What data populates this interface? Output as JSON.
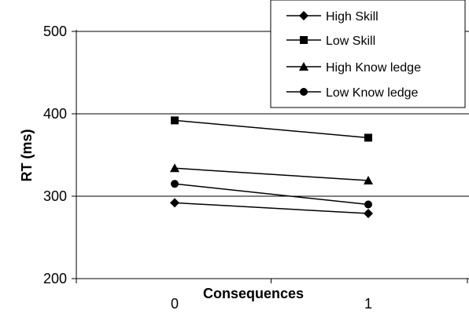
{
  "chart_data": {
    "type": "line",
    "title": "",
    "xlabel": "Consequences",
    "ylabel": "RT (ms)",
    "categories": [
      "0",
      "1"
    ],
    "ylim": [
      200,
      500
    ],
    "yticks": [
      "200",
      "300",
      "400",
      "500"
    ],
    "grid": "horizontal",
    "legend_position": "top-right",
    "series": [
      {
        "name": "High Skill",
        "marker": "diamond",
        "values": [
          292,
          279
        ]
      },
      {
        "name": "Low  Skill",
        "marker": "square",
        "values": [
          392,
          371
        ]
      },
      {
        "name": "High Know ledge",
        "marker": "triangle",
        "values": [
          334,
          319
        ]
      },
      {
        "name": "Low  Know ledge",
        "marker": "circle",
        "values": [
          315,
          290
        ]
      }
    ],
    "colors": {
      "line": "#000000",
      "grid": "#000000",
      "background": "#ffffff"
    }
  }
}
